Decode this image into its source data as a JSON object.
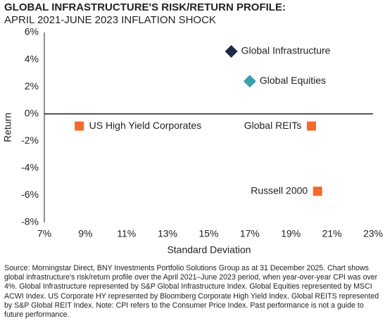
{
  "chart_data": {
    "type": "scatter",
    "title": "GLOBAL INFRASTRUCTURE'S RISK/RETURN PROFILE:",
    "subtitle": "APRIL 2021-JUNE 2023 INFLATION SHOCK",
    "x_label": "Standard Deviation",
    "y_label": "Return",
    "xlim": [
      7,
      23
    ],
    "xticks": [
      {
        "value": 7,
        "label": "7%"
      },
      {
        "value": 9,
        "label": "9%"
      },
      {
        "value": 11,
        "label": "11%"
      },
      {
        "value": 13,
        "label": "13%"
      },
      {
        "value": 15,
        "label": "15%"
      },
      {
        "value": 17,
        "label": "17%"
      },
      {
        "value": 19,
        "label": "19%"
      },
      {
        "value": 21,
        "label": "21%"
      },
      {
        "value": 23,
        "label": "23%"
      }
    ],
    "ylim": [
      -8,
      6
    ],
    "yticks": [
      {
        "value": -8,
        "label": "-8%"
      },
      {
        "value": -6,
        "label": "-6%"
      },
      {
        "value": -4,
        "label": "-4%"
      },
      {
        "value": -2,
        "label": "-2%"
      },
      {
        "value": 0,
        "label": "0%"
      },
      {
        "value": 2,
        "label": "2%"
      },
      {
        "value": 4,
        "label": "4%"
      },
      {
        "value": 6,
        "label": "6%"
      }
    ],
    "series": [
      {
        "name": "Global Infrastructure",
        "color": "#1b2a45",
        "marker": "diamond",
        "label_side": "right",
        "x": [
          16.1
        ],
        "y": [
          4.6
        ]
      },
      {
        "name": "Global Equities",
        "color": "#3a9fae",
        "marker": "diamond",
        "label_side": "right",
        "x": [
          17.0
        ],
        "y": [
          2.4
        ]
      },
      {
        "name": "US High Yield Corporates",
        "color": "#f26a2c",
        "marker": "square",
        "label_side": "right",
        "x": [
          8.7
        ],
        "y": [
          -0.9
        ]
      },
      {
        "name": "Global REITs",
        "color": "#f26a2c",
        "marker": "square",
        "label_side": "left",
        "x": [
          20.0
        ],
        "y": [
          -0.9
        ]
      },
      {
        "name": "Russell 2000",
        "color": "#f26a2c",
        "marker": "square",
        "label_side": "left",
        "x": [
          20.3
        ],
        "y": [
          -5.7
        ]
      }
    ],
    "footnote": "Source: Morningstar Direct, BNY Investments Portfolio Solutions Group as at 31 December 2025. Chart shows global infrastructure's risk/return profile over the April 2021–June 2023 period, when year-over-year CPI was over 4%. Global Infrastructure represented by S&P Global Infrastructure Index. Global Equities represented by MSCI ACWI Index. US Corporate HY represented by Bloomberg Corporate High Yield Index. Global REITS represented by S&P Global REIT Index. Note: CPI refers to the Consumer Price Index. Past performance is not a guide to future performance."
  }
}
